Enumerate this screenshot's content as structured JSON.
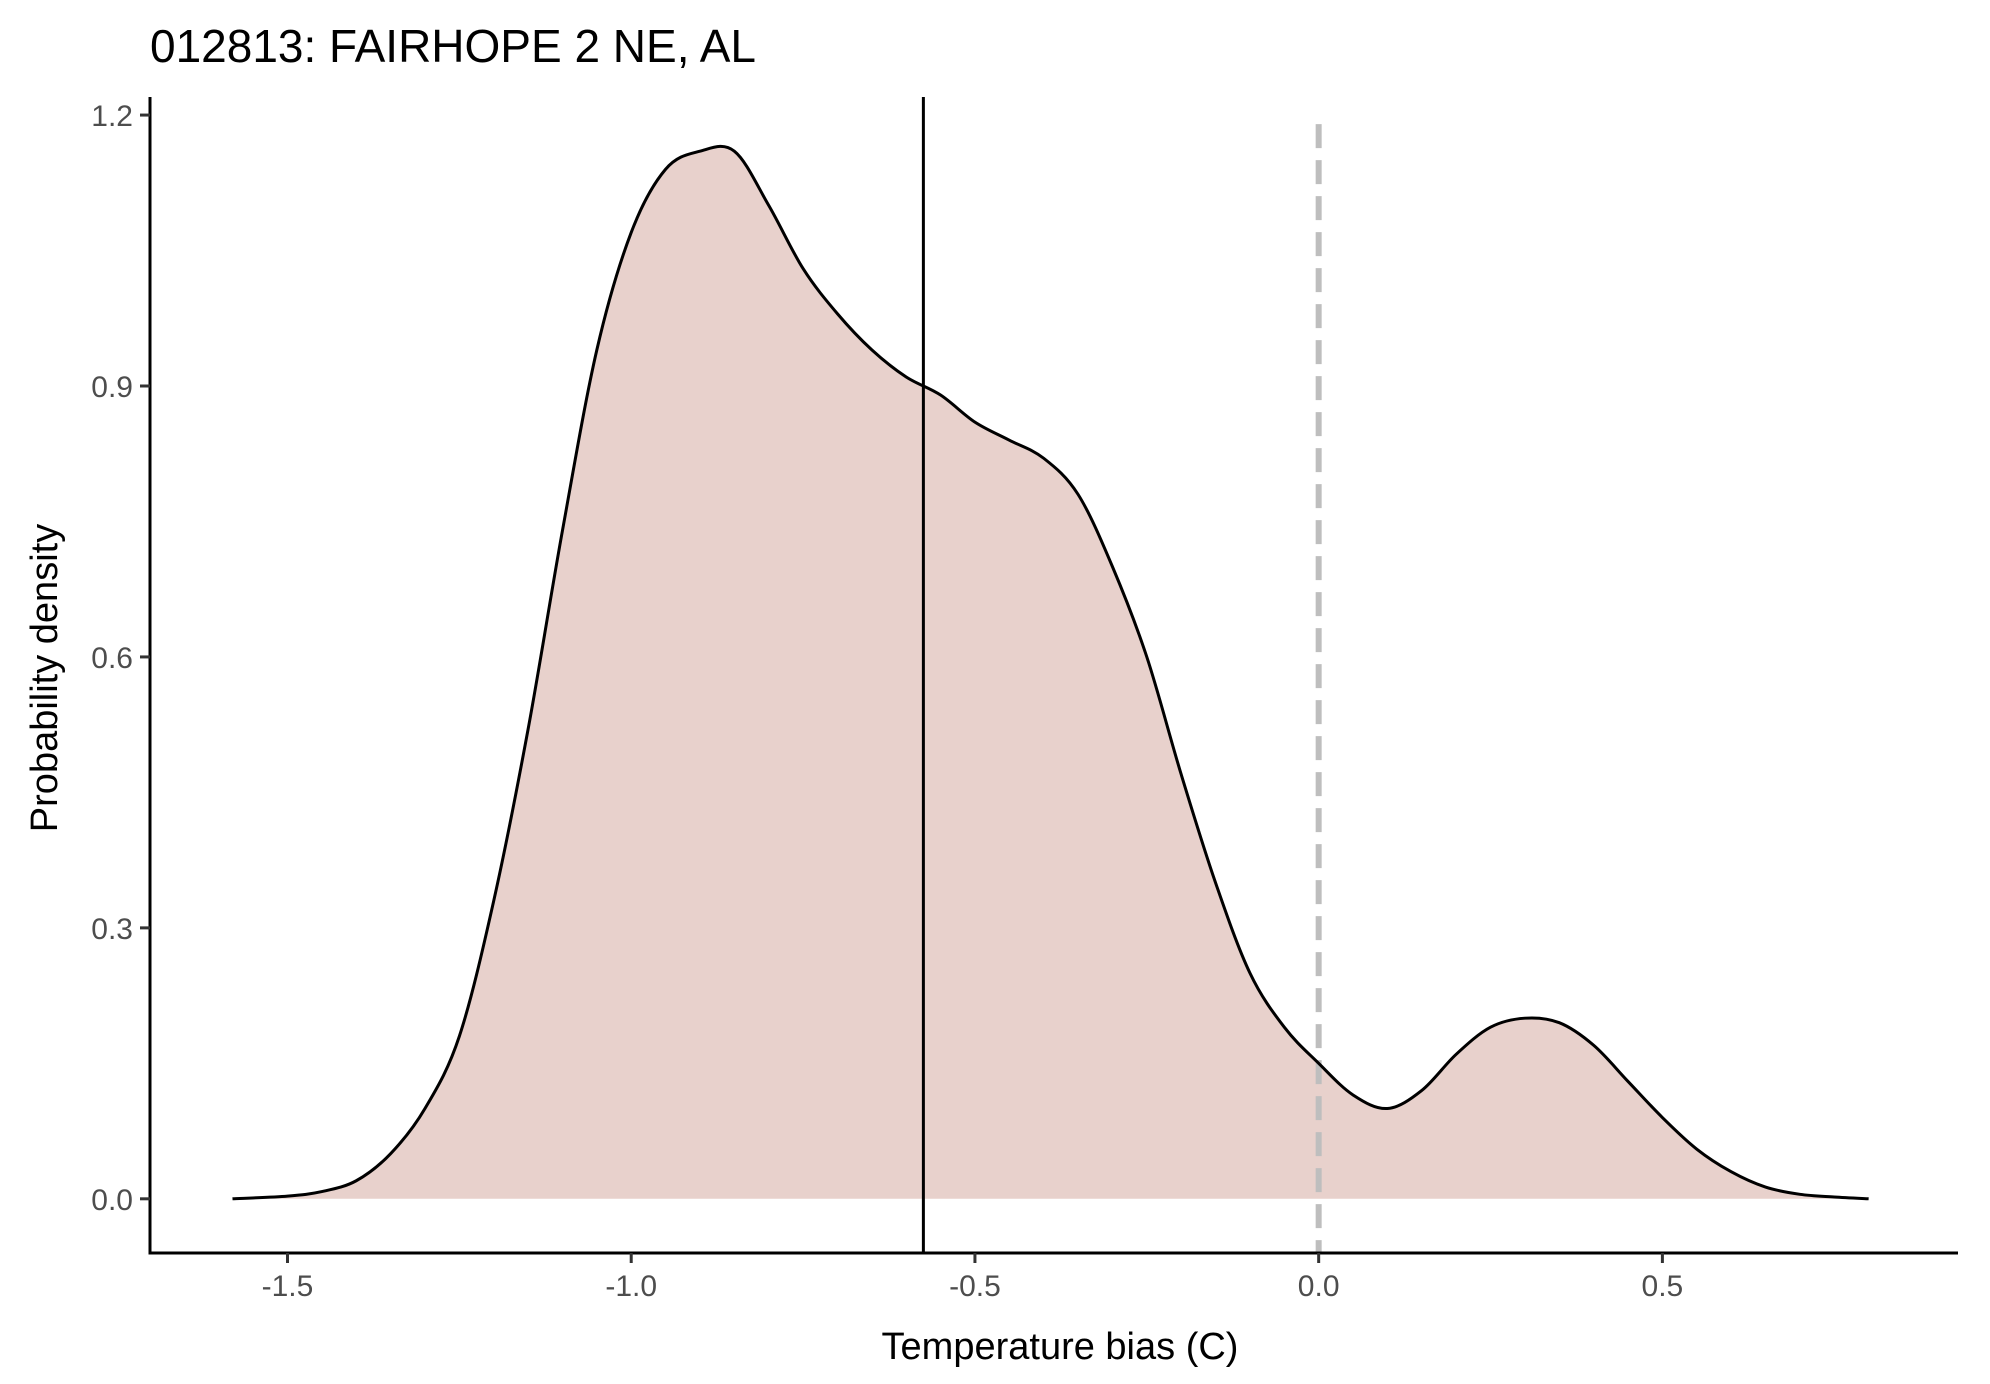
{
  "chart_data": {
    "type": "area",
    "title": "012813: FAIRHOPE 2 NE, AL",
    "xlabel": "Temperature bias (C)",
    "ylabel": "Probability density",
    "xlim": [
      -1.7,
      0.93
    ],
    "ylim": [
      -0.06,
      1.22
    ],
    "x_ticks": [
      -1.5,
      -1.0,
      -0.5,
      0.0,
      0.5
    ],
    "x_tick_labels": [
      "-1.5",
      "-1.0",
      "-0.5",
      "0.0",
      "0.5"
    ],
    "y_ticks": [
      0.0,
      0.3,
      0.6,
      0.9,
      1.2
    ],
    "y_tick_labels": [
      "0.0",
      "0.3",
      "0.6",
      "0.9",
      "1.2"
    ],
    "grid": false,
    "fill_color": "#e8d1cc",
    "line_color": "#000000",
    "reference_lines": [
      {
        "x": -0.575,
        "style": "solid",
        "color": "#000000"
      },
      {
        "x": 0.0,
        "style": "dashed",
        "color": "#bebebe",
        "y_range": [
          -0.06,
          1.19
        ]
      }
    ],
    "density": {
      "x": [
        -1.58,
        -1.5,
        -1.45,
        -1.4,
        -1.35,
        -1.3,
        -1.25,
        -1.2,
        -1.15,
        -1.1,
        -1.05,
        -1.0,
        -0.95,
        -0.9,
        -0.85,
        -0.8,
        -0.75,
        -0.7,
        -0.65,
        -0.6,
        -0.55,
        -0.5,
        -0.45,
        -0.4,
        -0.35,
        -0.3,
        -0.25,
        -0.2,
        -0.15,
        -0.1,
        -0.05,
        0.0,
        0.05,
        0.1,
        0.15,
        0.2,
        0.25,
        0.3,
        0.35,
        0.4,
        0.45,
        0.5,
        0.55,
        0.6,
        0.65,
        0.7,
        0.75,
        0.8
      ],
      "y": [
        0.0,
        0.003,
        0.008,
        0.02,
        0.05,
        0.1,
        0.18,
        0.33,
        0.52,
        0.74,
        0.94,
        1.07,
        1.14,
        1.16,
        1.16,
        1.1,
        1.03,
        0.98,
        0.94,
        0.91,
        0.89,
        0.86,
        0.84,
        0.82,
        0.78,
        0.7,
        0.6,
        0.47,
        0.35,
        0.25,
        0.19,
        0.15,
        0.115,
        0.1,
        0.12,
        0.16,
        0.19,
        0.2,
        0.195,
        0.17,
        0.13,
        0.09,
        0.055,
        0.03,
        0.013,
        0.005,
        0.002,
        0.0
      ]
    }
  }
}
